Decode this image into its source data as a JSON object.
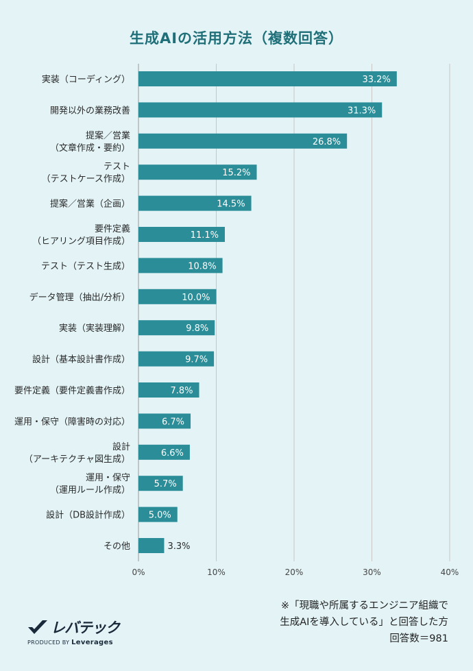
{
  "chart_data": {
    "type": "bar",
    "orientation": "horizontal",
    "title": "生成AIの活用方法（複数回答）",
    "categories": [
      [
        "実装（コーディング）"
      ],
      [
        "開発以外の業務改善"
      ],
      [
        "提案／営業",
        "（文章作成・要約）"
      ],
      [
        "テスト",
        "（テストケース作成）"
      ],
      [
        "提案／営業（企画）"
      ],
      [
        "要件定義",
        "（ヒアリング項目作成）"
      ],
      [
        "テスト（テスト生成）"
      ],
      [
        "データ管理（抽出/分析）"
      ],
      [
        "実装（実装理解）"
      ],
      [
        "設計（基本設計書作成）"
      ],
      [
        "要件定義（要件定義書作成）"
      ],
      [
        "運用・保守（障害時の対応）"
      ],
      [
        "設計",
        "（アーキテクチャ図生成）"
      ],
      [
        "運用・保守",
        "（運用ルール作成）"
      ],
      [
        "設計（DB設計作成）"
      ],
      [
        "その他"
      ]
    ],
    "values": [
      33.2,
      31.3,
      26.8,
      15.2,
      14.5,
      11.1,
      10.8,
      10.0,
      9.8,
      9.7,
      7.8,
      6.7,
      6.6,
      5.7,
      5.0,
      3.3
    ],
    "value_labels": [
      "33.2%",
      "31.3%",
      "26.8%",
      "15.2%",
      "14.5%",
      "11.1%",
      "10.8%",
      "10.0%",
      "9.8%",
      "9.7%",
      "7.8%",
      "6.7%",
      "6.6%",
      "5.7%",
      "5.0%",
      "3.3%"
    ],
    "xlim": [
      0,
      40
    ],
    "xticks": [
      0,
      10,
      20,
      30,
      40
    ],
    "xtick_labels": [
      "0%",
      "10%",
      "20%",
      "30%",
      "40%"
    ],
    "grid": true,
    "bar_color": "#2a8d98",
    "grid_color": "#c7c7c7"
  },
  "note": {
    "line1": "※「現職や所属するエンジニア組織で",
    "line2": "生成AIを導入している」と回答した方",
    "line3": "回答数＝981"
  },
  "logo": {
    "name": "レバテック",
    "produced_by": "PRODUCED BY",
    "company": "Leverages"
  }
}
